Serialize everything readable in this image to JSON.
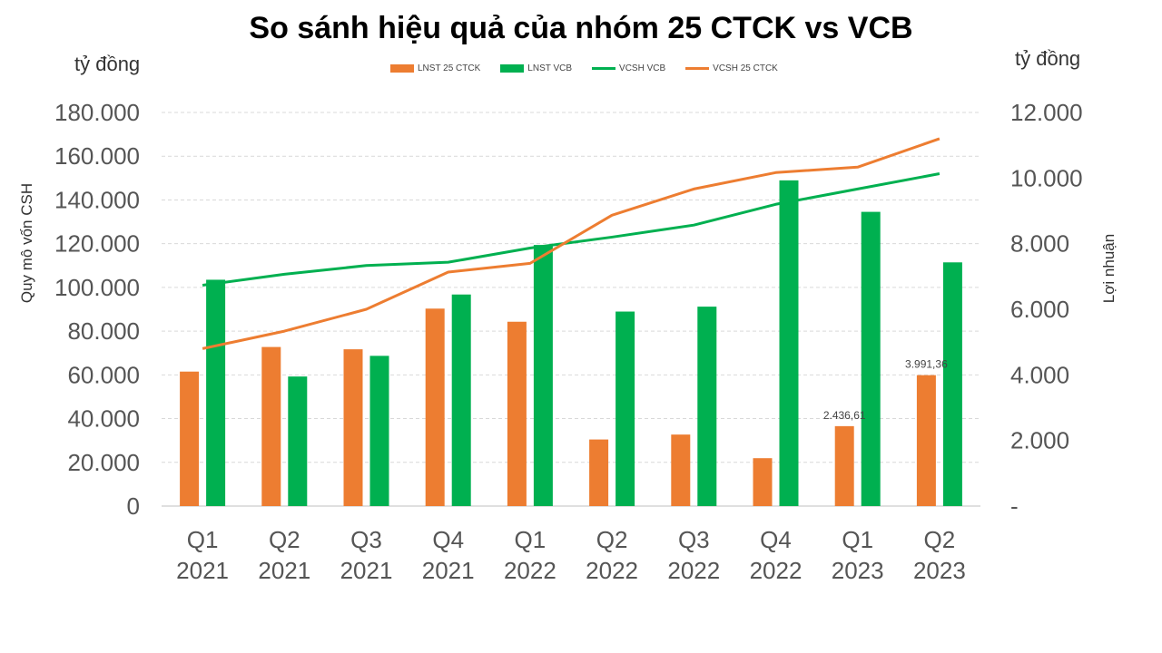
{
  "title": "So sánh hiệu quả của nhóm 25 CTCK vs VCB",
  "unit_left": "tỷ đồng",
  "unit_right": "tỷ đồng",
  "colors": {
    "orange": "#ED7D31",
    "green": "#00B050",
    "grid": "#D9D9D9"
  },
  "chart_data": {
    "type": "bar",
    "title": "So sánh hiệu quả của nhóm 25 CTCK vs VCB",
    "categories": [
      [
        "Q1",
        "2021"
      ],
      [
        "Q2",
        "2021"
      ],
      [
        "Q3",
        "2021"
      ],
      [
        "Q4",
        "2021"
      ],
      [
        "Q1",
        "2022"
      ],
      [
        "Q2",
        "2022"
      ],
      [
        "Q3",
        "2022"
      ],
      [
        "Q4",
        "2022"
      ],
      [
        "Q1",
        "2023"
      ],
      [
        "Q2",
        "2023"
      ]
    ],
    "ylabel_left": "Quy mô vốn CSH",
    "ylabel_right": "Lợi nhuận",
    "ylim_left": [
      0,
      180000
    ],
    "ylim_right": [
      0,
      12000
    ],
    "yticks_left": [
      "0",
      "20.000",
      "40.000",
      "60.000",
      "80.000",
      "100.000",
      "120.000",
      "140.000",
      "160.000",
      "180.000"
    ],
    "yticks_right": [
      "-",
      "2.000",
      "4.000",
      "6.000",
      "8.000",
      "10.000",
      "12.000"
    ],
    "legend_position": "top",
    "grid": true,
    "series": [
      {
        "name": "LNST 25 CTCK",
        "kind": "bar",
        "axis": "right",
        "color": "#ED7D31",
        "values": [
          4100,
          4850,
          4780,
          6020,
          5620,
          2030,
          2180,
          1460,
          2436.61,
          3991.36
        ]
      },
      {
        "name": "LNST VCB",
        "kind": "bar",
        "axis": "right",
        "color": "#00B050",
        "values": [
          6900,
          3950,
          4580,
          6450,
          7960,
          5930,
          6080,
          9930,
          8970,
          7430
        ]
      },
      {
        "name": "VCSH VCB",
        "kind": "line",
        "axis": "left",
        "color": "#00B050",
        "values": [
          101000,
          106000,
          110000,
          111500,
          118000,
          123000,
          128500,
          138000,
          145000,
          152000
        ]
      },
      {
        "name": "VCSH 25 CTCK",
        "kind": "line",
        "axis": "left",
        "color": "#ED7D31",
        "values": [
          72000,
          80000,
          90000,
          107000,
          111000,
          133000,
          145000,
          152500,
          155000,
          168000
        ]
      }
    ],
    "data_labels": [
      {
        "series": 0,
        "index": 8,
        "text": "2.436,61"
      },
      {
        "series": 0,
        "index": 9,
        "text": "3.991,36"
      }
    ]
  }
}
